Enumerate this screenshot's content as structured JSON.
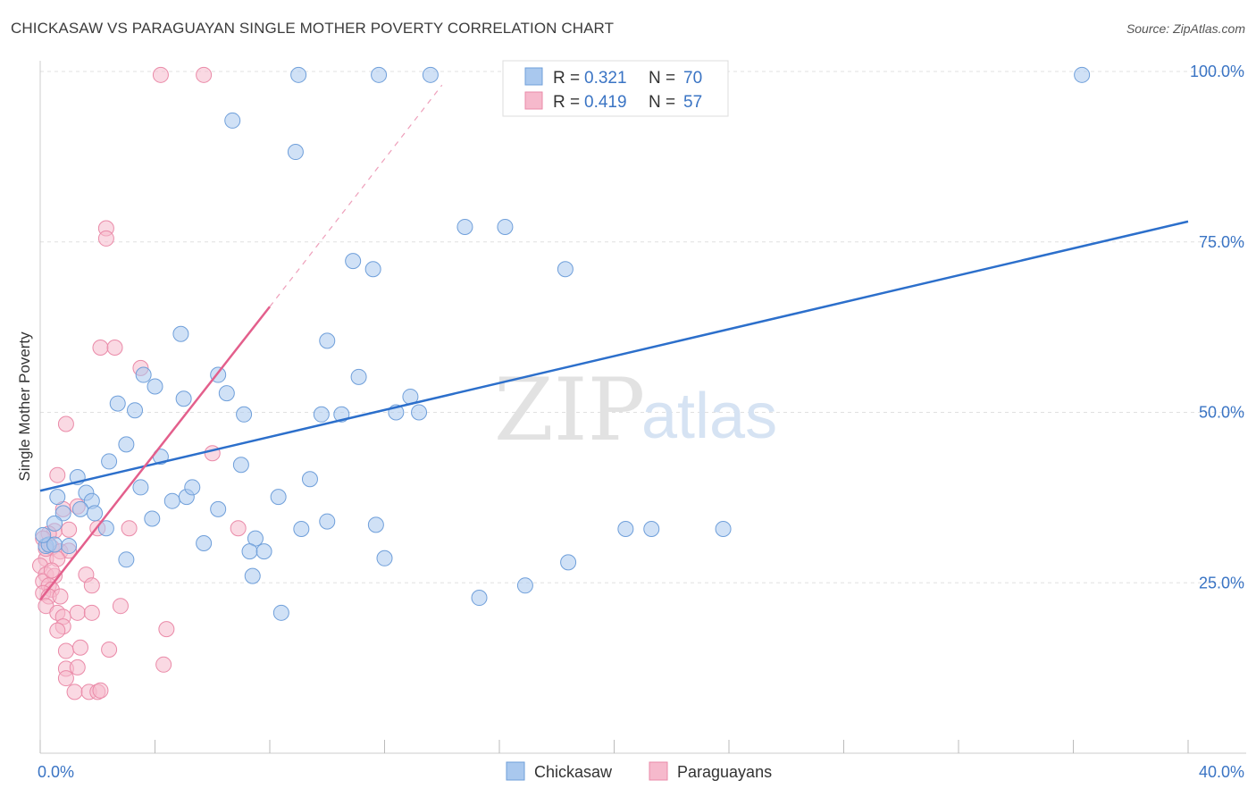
{
  "title": "CHICKASAW VS PARAGUAYAN SINGLE MOTHER POVERTY CORRELATION CHART",
  "source": "Source: ZipAtlas.com",
  "watermark": {
    "zip": "ZIP",
    "atlas": "atlas"
  },
  "colors": {
    "chickasaw_fill": "#a9c8ee",
    "chickasaw_stroke": "#6f9fda",
    "chickasaw_line": "#2c6fcb",
    "paraguayan_fill": "#f6b9cc",
    "paraguayan_stroke": "#ea8aa8",
    "paraguayan_line": "#e35f8c",
    "tick_text": "#3a74c4",
    "grid": "#e0e0e0"
  },
  "legend": {
    "rows": [
      {
        "r_label": "R =",
        "r_value": "0.321",
        "n_label": "N =",
        "n_value": "70"
      },
      {
        "r_label": "R =",
        "r_value": "0.419",
        "n_label": "N =",
        "n_value": "57"
      }
    ]
  },
  "bottom_legend": [
    "Chickasaw",
    "Paraguayans"
  ],
  "chart_data": {
    "type": "scatter",
    "title": "CHICKASAW VS PARAGUAYAN SINGLE MOTHER POVERTY CORRELATION CHART",
    "xlabel": "",
    "ylabel": "Single Mother Poverty",
    "xlim": [
      0,
      40
    ],
    "ylim": [
      0,
      100
    ],
    "x_tick_labels": [
      "0.0%",
      "40.0%"
    ],
    "y_tick_values": [
      25,
      50,
      75,
      100
    ],
    "y_tick_labels": [
      "25.0%",
      "50.0%",
      "75.0%",
      "100.0%"
    ],
    "grid": true,
    "legend_position": "top-center",
    "series": [
      {
        "name": "Chickasaw",
        "r": 0.321,
        "n": 70,
        "trend": {
          "x": [
            0,
            40
          ],
          "y": [
            38.5,
            78
          ]
        },
        "points": [
          [
            9,
            99.5
          ],
          [
            11.8,
            99.5
          ],
          [
            13.6,
            99.5
          ],
          [
            36.3,
            99.5
          ],
          [
            6.7,
            92.8
          ],
          [
            8.9,
            88.2
          ],
          [
            14.8,
            77.2
          ],
          [
            16.2,
            77.2
          ],
          [
            10.9,
            72.2
          ],
          [
            11.6,
            71.0
          ],
          [
            18.3,
            71.0
          ],
          [
            4.9,
            61.5
          ],
          [
            10.0,
            60.5
          ],
          [
            11.1,
            55.2
          ],
          [
            3.6,
            55.5
          ],
          [
            6.2,
            55.5
          ],
          [
            4.0,
            53.8
          ],
          [
            5.0,
            52.0
          ],
          [
            6.5,
            52.8
          ],
          [
            2.7,
            51.3
          ],
          [
            3.3,
            50.3
          ],
          [
            7.1,
            49.7
          ],
          [
            9.8,
            49.7
          ],
          [
            10.5,
            49.7
          ],
          [
            12.4,
            50.0
          ],
          [
            13.2,
            50.0
          ],
          [
            12.9,
            52.3
          ],
          [
            3.0,
            45.3
          ],
          [
            4.2,
            43.5
          ],
          [
            2.4,
            42.8
          ],
          [
            7.0,
            42.3
          ],
          [
            1.3,
            40.5
          ],
          [
            9.4,
            40.2
          ],
          [
            3.5,
            39.0
          ],
          [
            0.6,
            37.6
          ],
          [
            1.6,
            38.2
          ],
          [
            1.8,
            37.0
          ],
          [
            4.6,
            37.0
          ],
          [
            5.1,
            37.6
          ],
          [
            5.3,
            39.0
          ],
          [
            8.3,
            37.6
          ],
          [
            1.4,
            35.8
          ],
          [
            6.2,
            35.8
          ],
          [
            0.8,
            35.2
          ],
          [
            1.9,
            35.2
          ],
          [
            3.9,
            34.4
          ],
          [
            0.5,
            33.7
          ],
          [
            2.3,
            33.0
          ],
          [
            10.0,
            34.0
          ],
          [
            11.7,
            33.5
          ],
          [
            9.1,
            32.9
          ],
          [
            20.4,
            32.9
          ],
          [
            21.3,
            32.9
          ],
          [
            23.8,
            32.9
          ],
          [
            7.5,
            31.5
          ],
          [
            5.7,
            30.8
          ],
          [
            0.2,
            30.4
          ],
          [
            0.3,
            30.6
          ],
          [
            0.5,
            30.6
          ],
          [
            1.0,
            30.4
          ],
          [
            7.3,
            29.6
          ],
          [
            7.8,
            29.6
          ],
          [
            3.0,
            28.4
          ],
          [
            12.0,
            28.6
          ],
          [
            18.4,
            28.0
          ],
          [
            7.4,
            26.0
          ],
          [
            16.9,
            24.6
          ],
          [
            15.3,
            22.8
          ],
          [
            8.4,
            20.6
          ],
          [
            0.1,
            32.0
          ]
        ]
      },
      {
        "name": "Paraguayans",
        "r": 0.419,
        "n": 57,
        "trend": {
          "x": [
            0,
            8
          ],
          "y": [
            22.5,
            65.5
          ]
        },
        "trend_dashed": {
          "x": [
            8,
            14
          ],
          "y": [
            65.5,
            98
          ]
        },
        "points": [
          [
            4.2,
            99.5
          ],
          [
            5.7,
            99.5
          ],
          [
            2.3,
            77.0
          ],
          [
            2.3,
            75.5
          ],
          [
            2.1,
            59.5
          ],
          [
            2.6,
            59.5
          ],
          [
            3.5,
            56.5
          ],
          [
            0.9,
            48.3
          ],
          [
            6.0,
            44.0
          ],
          [
            0.6,
            40.8
          ],
          [
            0.8,
            35.8
          ],
          [
            1.3,
            36.2
          ],
          [
            0.5,
            32.6
          ],
          [
            1.0,
            32.8
          ],
          [
            2.0,
            33.0
          ],
          [
            3.1,
            33.0
          ],
          [
            6.9,
            33.0
          ],
          [
            0.3,
            32.2
          ],
          [
            0.1,
            31.5
          ],
          [
            0.4,
            30.2
          ],
          [
            0.7,
            29.6
          ],
          [
            1.0,
            29.7
          ],
          [
            0.2,
            28.5
          ],
          [
            0.6,
            28.5
          ],
          [
            0.0,
            27.5
          ],
          [
            0.2,
            26.2
          ],
          [
            0.5,
            26.0
          ],
          [
            1.6,
            26.2
          ],
          [
            0.1,
            25.2
          ],
          [
            0.3,
            24.6
          ],
          [
            0.4,
            24.0
          ],
          [
            1.8,
            24.6
          ],
          [
            0.1,
            23.5
          ],
          [
            0.3,
            23.0
          ],
          [
            0.7,
            23.0
          ],
          [
            0.2,
            21.6
          ],
          [
            2.8,
            21.6
          ],
          [
            0.6,
            20.6
          ],
          [
            0.8,
            20.0
          ],
          [
            1.3,
            20.6
          ],
          [
            1.8,
            20.6
          ],
          [
            0.8,
            18.6
          ],
          [
            0.6,
            18.0
          ],
          [
            4.4,
            18.2
          ],
          [
            0.9,
            15.0
          ],
          [
            1.4,
            15.5
          ],
          [
            2.4,
            15.2
          ],
          [
            0.9,
            12.4
          ],
          [
            1.3,
            12.6
          ],
          [
            4.3,
            13.0
          ],
          [
            0.9,
            11.0
          ],
          [
            1.2,
            9.0
          ],
          [
            1.7,
            9.0
          ],
          [
            2.0,
            9.0
          ],
          [
            2.1,
            9.2
          ],
          [
            0.4,
            26.8
          ],
          [
            0.2,
            30.0
          ]
        ]
      }
    ]
  }
}
